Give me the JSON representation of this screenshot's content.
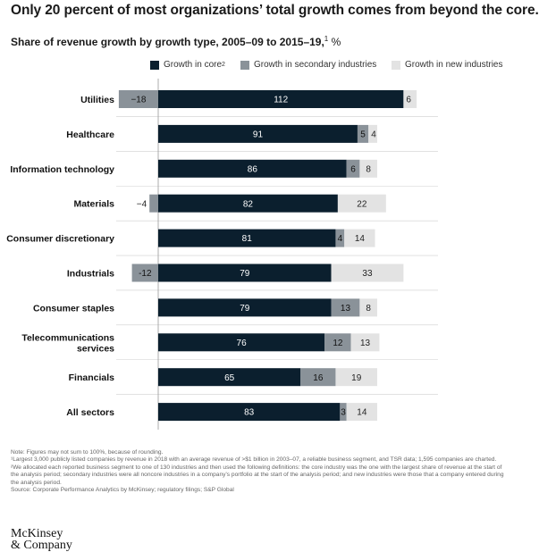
{
  "header": {
    "headline": "Only 20 percent of most organizations’ total growth comes from beyond the core.",
    "subtitle": "Share of revenue growth by growth type, 2005–09 to 2015–19,",
    "subtitle_sup": "1",
    "subtitle_unit": " %"
  },
  "legend": {
    "core": "Growth in core",
    "core_sup": "2",
    "secondary": "Growth in secondary industries",
    "new": "Growth in new industries"
  },
  "colors": {
    "core": "#0b1f2e",
    "secondary": "#8a9299",
    "new": "#e3e3e3",
    "divider": "#cfcfcf",
    "axis": "#9a9a9a"
  },
  "chart_data": {
    "type": "bar",
    "orientation": "horizontal-stacked",
    "categories": [
      "Utilities",
      "Healthcare",
      "Information technology",
      "Materials",
      "Consumer discretionary",
      "Industrials",
      "Consumer staples",
      "Telecommunications services",
      "Financials",
      "All sectors"
    ],
    "series": [
      {
        "name": "Growth in core",
        "values": [
          112,
          91,
          86,
          82,
          81,
          79,
          79,
          76,
          65,
          83
        ]
      },
      {
        "name": "Growth in secondary industries",
        "values": [
          -18,
          5,
          6,
          -4,
          4,
          -12,
          13,
          12,
          16,
          3
        ]
      },
      {
        "name": "Growth in new industries",
        "values": [
          6,
          4,
          8,
          22,
          14,
          33,
          8,
          13,
          19,
          14
        ]
      }
    ],
    "value_labels": [
      [
        "112",
        "−18",
        "6"
      ],
      [
        "91",
        "5",
        "4"
      ],
      [
        "86",
        "6",
        "8"
      ],
      [
        "82",
        "−4",
        "22"
      ],
      [
        "81",
        "4",
        "14"
      ],
      [
        "79",
        "-12",
        "33"
      ],
      [
        "79",
        "13",
        "8"
      ],
      [
        "76",
        "12",
        "13"
      ],
      [
        "65",
        "16",
        "19"
      ],
      [
        "83",
        "3",
        "14"
      ]
    ],
    "unit": "%",
    "xlim": [
      -18,
      130
    ],
    "legend_position": "top"
  },
  "footnotes": {
    "note": "Note: Figures may not sum to 100%, because of rounding.",
    "fn1": "¹Largest 3,000 publicly listed companies by revenue in 2018 with an average revenue of >$1 billion in 2003–07, a reliable business segment, and TSR data; 1,595 companies are charted.",
    "fn2": "²We allocated each reported business segment to one of 130 industries and then used the following definitions: the core industry was the one with the largest share of revenue at the start of the analysis period; secondary industries were all noncore industries in a company’s portfolio at the start of the analysis period; and new industries were those that a company entered during the analysis period.",
    "source": "Source: Corporate Performance Analytics by McKinsey; regulatory filings; S&P Global"
  },
  "brand": {
    "line1": "McKinsey",
    "line2": "& Company"
  }
}
